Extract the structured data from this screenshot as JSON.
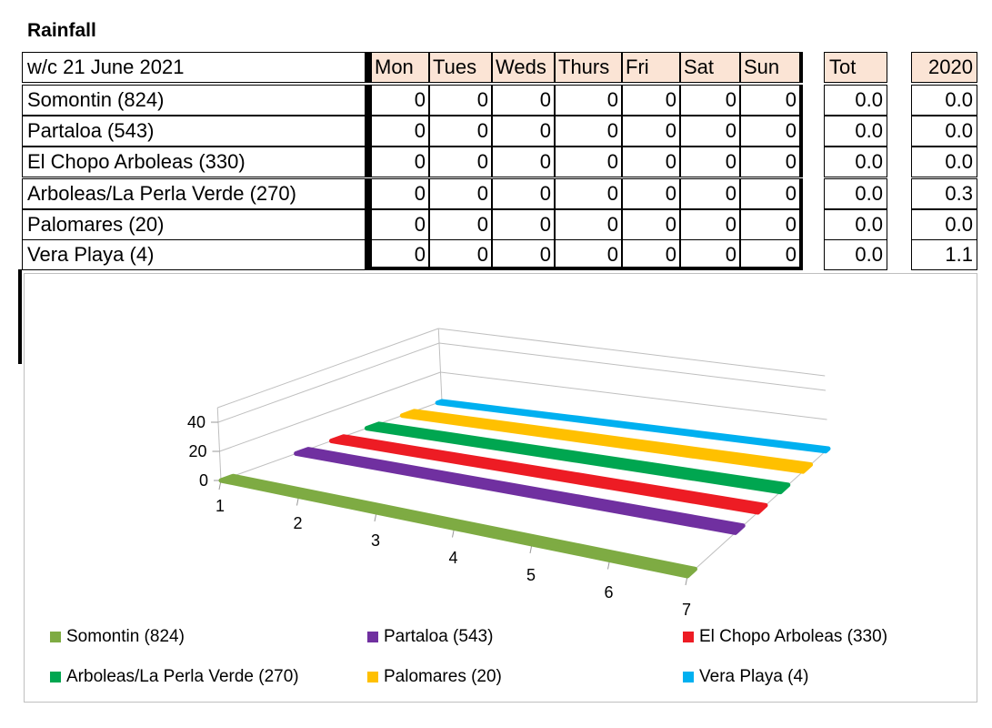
{
  "title": "Rainfall",
  "table": {
    "header": {
      "week": "w/c 21 June 2021",
      "days": [
        "Mon",
        "Tues",
        "Weds",
        "Thurs",
        "Fri",
        "Sat",
        "Sun"
      ],
      "tot": "Tot",
      "year": "2020"
    },
    "rows": [
      {
        "name": "Somontin (824)",
        "days": [
          "0",
          "0",
          "0",
          "0",
          "0",
          "0",
          "0"
        ],
        "tot": "0.0",
        "year": "0.0"
      },
      {
        "name": "Partaloa (543)",
        "days": [
          "0",
          "0",
          "0",
          "0",
          "0",
          "0",
          "0"
        ],
        "tot": "0.0",
        "year": "0.0"
      },
      {
        "name": "El Chopo Arboleas (330)",
        "days": [
          "0",
          "0",
          "0",
          "0",
          "0",
          "0",
          "0"
        ],
        "tot": "0.0",
        "year": "0.0"
      },
      {
        "name": "Arboleas/La Perla Verde (270)",
        "days": [
          "0",
          "0",
          "0",
          "0",
          "0",
          "0",
          "0"
        ],
        "tot": "0.0",
        "year": "0.3"
      },
      {
        "name": "Palomares (20)",
        "days": [
          "0",
          "0",
          "0",
          "0",
          "0",
          "0",
          "0"
        ],
        "tot": "0.0",
        "year": "0.0"
      },
      {
        "name": "Vera Playa (4)",
        "days": [
          "0",
          "0",
          "0",
          "0",
          "0",
          "0",
          "0"
        ],
        "tot": "0.0",
        "year": "1.1"
      }
    ]
  },
  "chart_data": {
    "type": "area",
    "categories": [
      "1",
      "2",
      "3",
      "4",
      "5",
      "6",
      "7"
    ],
    "series": [
      {
        "name": "Somontin (824)",
        "values": [
          0,
          0,
          0,
          0,
          0,
          0,
          0
        ],
        "color": "#7eab43"
      },
      {
        "name": "Partaloa (543)",
        "values": [
          0,
          0,
          0,
          0,
          0,
          0,
          0
        ],
        "color": "#7030a0"
      },
      {
        "name": "El Chopo Arboleas (330)",
        "values": [
          0,
          0,
          0,
          0,
          0,
          0,
          0
        ],
        "color": "#ed1c24"
      },
      {
        "name": "Arboleas/La Perla Verde (270)",
        "values": [
          0,
          0,
          0,
          0,
          0,
          0,
          0
        ],
        "color": "#00a650"
      },
      {
        "name": "Palomares (20)",
        "values": [
          0,
          0,
          0,
          0,
          0,
          0,
          0
        ],
        "color": "#ffc000"
      },
      {
        "name": "Vera Playa (4)",
        "values": [
          0,
          0,
          0,
          0,
          0,
          0,
          0
        ],
        "color": "#00b0f0"
      }
    ],
    "y_ticks": [
      "0",
      "20",
      "40"
    ],
    "ylim": [
      0,
      40
    ],
    "grid": true,
    "legend_position": "bottom",
    "three_d": true
  }
}
